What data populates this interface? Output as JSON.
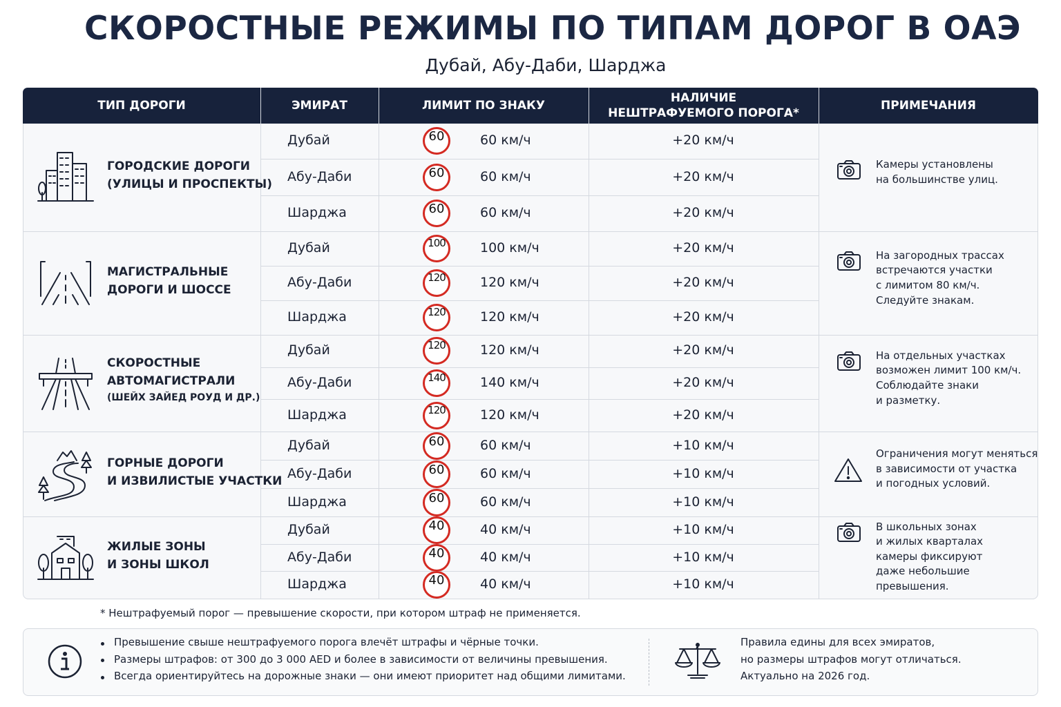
{
  "header": {
    "title": "СКОРОСТНЫЕ РЕЖИМЫ ПО ТИПАМ ДОРОГ В ОАЭ",
    "subtitle": "Дубай, Абу-Даби, Шарджа"
  },
  "table": {
    "columns": [
      [
        "ТИП ДОРОГИ"
      ],
      [
        "ЭМИРАТ"
      ],
      [
        "ЛИМИТ ПО ЗНАКУ"
      ],
      [
        "НАЛИЧИЕ",
        "НЕШТРАФУЕМОГО ПОРОГА*"
      ],
      [
        "ПРИМЕЧАНИЯ"
      ]
    ],
    "groups": [
      {
        "road_type": [
          "ГОРОДСКИЕ ДОРОГИ",
          "(УЛИЦЫ И ПРОСПЕКТЫ)"
        ],
        "rows": [
          {
            "emirate": "Дубай",
            "sign": "60",
            "limit": "60 км/ч",
            "threshold": "+20 км/ч"
          },
          {
            "emirate": "Абу-Даби",
            "sign": "60",
            "limit": "60 км/ч",
            "threshold": "+20 км/ч"
          },
          {
            "emirate": "Шарджа",
            "sign": "60",
            "limit": "60 км/ч",
            "threshold": "+20 км/ч"
          }
        ],
        "note": [
          "Камеры установлены",
          "на большинстве улиц."
        ]
      },
      {
        "road_type": [
          "МАГИСТРАЛЬНЫЕ",
          "ДОРОГИ И ШОССЕ"
        ],
        "rows": [
          {
            "emirate": "Дубай",
            "sign": "100",
            "limit": "100 км/ч",
            "threshold": "+20 км/ч"
          },
          {
            "emirate": "Абу-Даби",
            "sign": "120",
            "limit": "120 км/ч",
            "threshold": "+20 км/ч"
          },
          {
            "emirate": "Шарджа",
            "sign": "120",
            "limit": "120 км/ч",
            "threshold": "+20 км/ч"
          }
        ],
        "note": [
          "На загородных трассах",
          "встречаются участки",
          "с лимитом 80 км/ч.",
          "Следуйте знакам."
        ]
      },
      {
        "road_type": [
          "СКОРОСТНЫЕ",
          "АВТОМАГИСТРАЛИ",
          "(ШЕЙХ ЗАЙЕД РОУД И ДР.)"
        ],
        "rows": [
          {
            "emirate": "Дубай",
            "sign": "120",
            "limit": "120 км/ч",
            "threshold": "+20 км/ч"
          },
          {
            "emirate": "Абу-Даби",
            "sign": "140",
            "limit": "140 км/ч",
            "threshold": "+20 км/ч"
          },
          {
            "emirate": "Шарджа",
            "sign": "120",
            "limit": "120 км/ч",
            "threshold": "+20 км/ч"
          }
        ],
        "note": [
          "На отдельных участках",
          "возможен лимит 100 км/ч.",
          "Соблюдайте знаки",
          "и разметку."
        ]
      },
      {
        "road_type": [
          "ГОРНЫЕ ДОРОГИ",
          "И ИЗВИЛИСТЫЕ УЧАСТКИ"
        ],
        "rows": [
          {
            "emirate": "Дубай",
            "sign": "60",
            "limit": "60 км/ч",
            "threshold": "+10 км/ч"
          },
          {
            "emirate": "Абу-Даби",
            "sign": "60",
            "limit": "60 км/ч",
            "threshold": "+10 км/ч"
          },
          {
            "emirate": "Шарджа",
            "sign": "60",
            "limit": "60 км/ч",
            "threshold": "+10 км/ч"
          }
        ],
        "note": [
          "Ограничения могут меняться",
          "в зависимости от участка",
          "и погодных условий."
        ]
      },
      {
        "road_type": [
          "ЖИЛЫЕ ЗОНЫ",
          "И ЗОНЫ ШКОЛ"
        ],
        "rows": [
          {
            "emirate": "Дубай",
            "sign": "40",
            "limit": "40 км/ч",
            "threshold": "+10 км/ч"
          },
          {
            "emirate": "Абу-Даби",
            "sign": "40",
            "limit": "40 км/ч",
            "threshold": "+10 км/ч"
          },
          {
            "emirate": "Шарджа",
            "sign": "40",
            "limit": "40 км/ч",
            "threshold": "+10 км/ч"
          }
        ],
        "note": [
          "В школьных зонах",
          "и жилых кварталах",
          "камеры фиксируют",
          "даже небольшие",
          "превышения."
        ]
      }
    ]
  },
  "footnote": "* Нештрафуемый порог — превышение скорости, при котором штраф не применяется.",
  "info": {
    "bullets": [
      "Превышение свыше нештрафуемого порога влечёт штрафы и чёрные точки.",
      "Размеры штрафов: от 300 до 3 000 AED и более в зависимости от величины превышения.",
      "Всегда ориентируйтесь на дорожные знаки — они имеют приоритет над общими лимитами."
    ],
    "rules": [
      "Правила едины для всех эмиратов,",
      "но размеры штрафов могут отличаться.",
      "Актуально на 2026 год."
    ]
  }
}
